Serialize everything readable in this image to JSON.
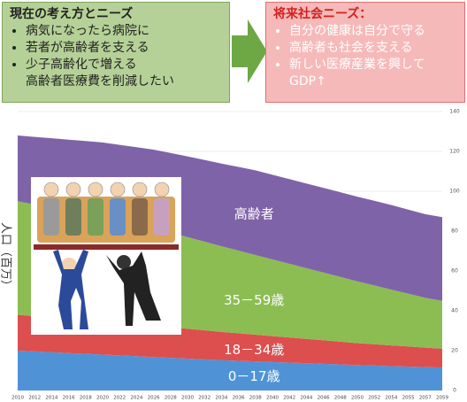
{
  "boxes": {
    "current": {
      "title": "現在の考え方とニーズ",
      "items": [
        [
          "病気になったら病院に"
        ],
        [
          "若者が高齢者を支える"
        ],
        [
          "少子高齢化で増える",
          "高齢者医療費を削減したい"
        ]
      ]
    },
    "future": {
      "title": "将来社会ニーズ：",
      "items": [
        [
          "自分の健康は自分で守る"
        ],
        [
          "高齢者も社会を支える"
        ],
        [
          "新しい医療産業を興して",
          "GDP↑"
        ]
      ]
    }
  },
  "chart_data": {
    "type": "stacked_area",
    "y_label": "人口（百万）",
    "categories": [
      "2010",
      "2012",
      "2014",
      "2016",
      "2018",
      "2020",
      "2022",
      "2024",
      "2026",
      "2028",
      "2030",
      "2032",
      "2034",
      "2036",
      "2038",
      "2040",
      "2042",
      "2044",
      "2046",
      "2048",
      "2050",
      "2052",
      "2054",
      "2055",
      "2057",
      "2059"
    ],
    "series": [
      {
        "name": "0－17歳",
        "color": "#4f93d6",
        "values": [
          20,
          19.6,
          19.2,
          18.8,
          18.4,
          18,
          17.6,
          17.2,
          16.8,
          16.4,
          16,
          15.6,
          15.2,
          14.9,
          14.6,
          14.3,
          14,
          13.7,
          13.4,
          13.1,
          12.8,
          12.5,
          12.2,
          12,
          11.7,
          11.5
        ]
      },
      {
        "name": "18－34歳",
        "color": "#dd4e4e",
        "values": [
          18,
          17.7,
          17.4,
          17.1,
          16.8,
          16.5,
          16.2,
          15.9,
          15.6,
          15.3,
          15,
          14.6,
          14.2,
          13.8,
          13.4,
          13,
          12.6,
          12.2,
          11.8,
          11.4,
          11,
          10.7,
          10.4,
          10.1,
          9.8,
          9.5
        ]
      },
      {
        "name": "35－59歳",
        "color": "#8cbd52",
        "values": [
          57,
          56,
          55,
          54,
          53,
          52,
          51,
          50,
          49,
          47.5,
          46,
          44.5,
          43,
          41.5,
          40,
          38.5,
          37,
          35.5,
          34,
          32.5,
          31,
          29.5,
          28,
          26.5,
          25,
          24
        ]
      },
      {
        "name": "高齢者",
        "color": "#7f63a8",
        "values": [
          33,
          34,
          35,
          36,
          37,
          38,
          38.5,
          39,
          39.5,
          40,
          40.5,
          41,
          41.5,
          42,
          42.5,
          42.5,
          42.5,
          42.5,
          42.5,
          42.5,
          42.5,
          42.5,
          42.5,
          42.2,
          42,
          42
        ]
      }
    ],
    "ylim": [
      0,
      140
    ],
    "yticks": [
      0,
      20,
      40,
      60,
      80,
      100,
      120,
      140
    ],
    "grid": true
  }
}
